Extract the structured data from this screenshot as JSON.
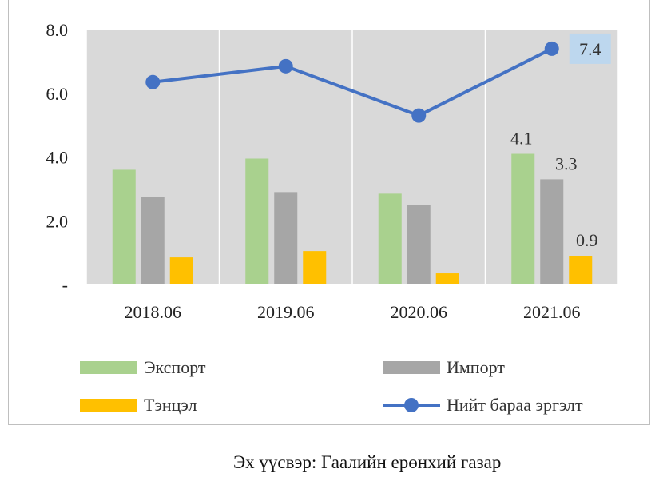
{
  "chart_data": {
    "type": "bar",
    "categories": [
      "2018.06",
      "2019.06",
      "2020.06",
      "2021.06"
    ],
    "series": [
      {
        "name": "Экспорт",
        "kind": "bar",
        "color": "#a9d18e",
        "values": [
          3.6,
          3.95,
          2.85,
          4.1
        ]
      },
      {
        "name": "Импорт",
        "kind": "bar",
        "color": "#a6a6a6",
        "values": [
          2.75,
          2.9,
          2.5,
          3.3
        ]
      },
      {
        "name": "Тэнцэл",
        "kind": "bar",
        "color": "#ffc000",
        "values": [
          0.85,
          1.05,
          0.35,
          0.9
        ]
      },
      {
        "name": "Нийт бараа эргэлт",
        "kind": "line",
        "color": "#4472c4",
        "values": [
          6.35,
          6.85,
          5.3,
          7.4
        ]
      }
    ],
    "y_ticks": [
      "-",
      "2.0",
      "4.0",
      "6.0",
      "8.0"
    ],
    "ylim": [
      0,
      8
    ],
    "data_labels": [
      {
        "series": "Экспорт",
        "category": "2021.06",
        "text": "4.1"
      },
      {
        "series": "Импорт",
        "category": "2021.06",
        "text": "3.3"
      },
      {
        "series": "Тэнцэл",
        "category": "2021.06",
        "text": "0.9"
      },
      {
        "series": "Нийт бараа эргэлт",
        "category": "2021.06",
        "text": "7.4",
        "highlight": "#bdd7ee"
      }
    ],
    "plot_background": "#d9d9d9",
    "grid": "vertical category separators",
    "legend_position": "bottom"
  },
  "source_note": "Эх үүсвэр: Гаалийн ерөнхий газар"
}
